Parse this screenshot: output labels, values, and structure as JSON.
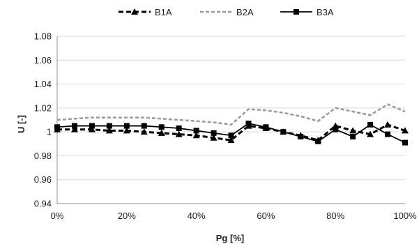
{
  "chart_data": {
    "type": "line",
    "title": "",
    "xlabel": "Pg [%]",
    "ylabel": "U [-]",
    "x": [
      0,
      5,
      10,
      15,
      20,
      25,
      30,
      35,
      40,
      45,
      50,
      55,
      60,
      65,
      70,
      75,
      80,
      85,
      90,
      95,
      100
    ],
    "xlim": [
      0,
      100
    ],
    "x_ticks": [
      0,
      20,
      40,
      60,
      80,
      100
    ],
    "x_tick_labels": [
      "0%",
      "20%",
      "40%",
      "60%",
      "80%",
      "100%"
    ],
    "ylim": [
      0.94,
      1.08
    ],
    "y_ticks": [
      0.94,
      0.96,
      0.98,
      1,
      1.02,
      1.04,
      1.06,
      1.08
    ],
    "y_tick_labels": [
      "0.94",
      "0.96",
      "0.98",
      "1",
      "1.02",
      "1.04",
      "1.06",
      "1.08"
    ],
    "grid": "horizontal",
    "legend_position": "top",
    "series": [
      {
        "name": "B1A",
        "style": "dashed",
        "marker": "triangle",
        "color": "#000000",
        "values": [
          1.002,
          1.002,
          1.002,
          1.001,
          1.001,
          1.0,
          0.999,
          0.998,
          0.997,
          0.995,
          0.993,
          1.005,
          1.003,
          1.0,
          0.997,
          0.993,
          1.005,
          1.001,
          0.998,
          1.006,
          1.001
        ]
      },
      {
        "name": "B2A",
        "style": "dashed",
        "marker": "none",
        "color": "#999999",
        "values": [
          1.01,
          1.011,
          1.012,
          1.012,
          1.012,
          1.012,
          1.011,
          1.01,
          1.009,
          1.008,
          1.006,
          1.019,
          1.018,
          1.016,
          1.013,
          1.009,
          1.02,
          1.017,
          1.014,
          1.023,
          1.017
        ]
      },
      {
        "name": "B3A",
        "style": "solid",
        "marker": "square",
        "color": "#000000",
        "values": [
          1.004,
          1.005,
          1.005,
          1.005,
          1.005,
          1.005,
          1.004,
          1.003,
          1.001,
          0.999,
          0.997,
          1.007,
          1.004,
          1.0,
          0.996,
          0.992,
          1.002,
          0.996,
          1.006,
          0.998,
          0.991
        ]
      }
    ]
  }
}
